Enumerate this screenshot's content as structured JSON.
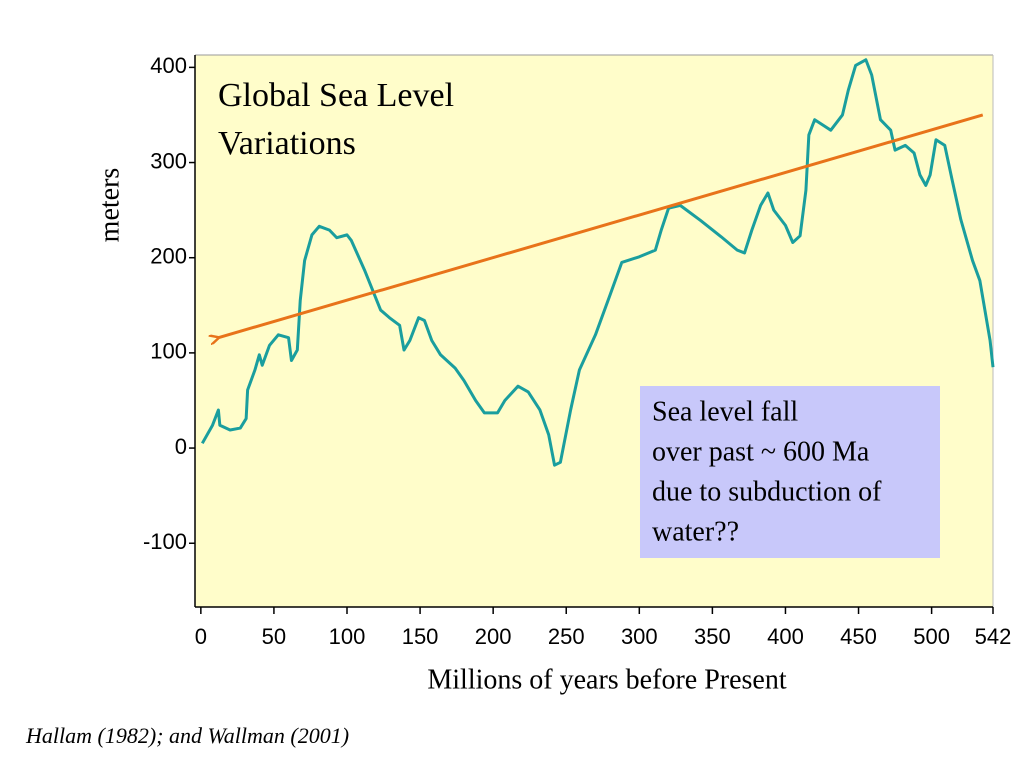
{
  "chart_data": {
    "type": "line",
    "title": [
      "Global Sea Level",
      "Variations"
    ],
    "ylabel": "meters",
    "xlabel": "Millions of years before Present",
    "source": "Hallam (1982); and Wallman (2001)",
    "annotation": {
      "lines": [
        "Sea level fall",
        "over past ~ 600 Ma",
        "due to subduction of",
        "water??"
      ],
      "color": "#c8c8fa"
    },
    "background": "#fffdca",
    "xlim": [
      -4,
      542
    ],
    "ylim": [
      -167,
      413
    ],
    "xticks": [
      0,
      50,
      100,
      150,
      200,
      250,
      300,
      350,
      400,
      450,
      500,
      542
    ],
    "yticks": [
      -100,
      0,
      100,
      200,
      300,
      400
    ],
    "series": [
      {
        "color": "#1a9e9e",
        "x": [
          1,
          8,
          12,
          13,
          20,
          27,
          31,
          32,
          37,
          40,
          42,
          47,
          53,
          60,
          62,
          66,
          68,
          71,
          76,
          81,
          88,
          93,
          100,
          103,
          112,
          123,
          129,
          136,
          139,
          143,
          149,
          153,
          158,
          164,
          174,
          180,
          188,
          194,
          203,
          208,
          217,
          224,
          232,
          238,
          242,
          246,
          253,
          259,
          270,
          280,
          288,
          300,
          311,
          315,
          320,
          328,
          342,
          356,
          367,
          372,
          377,
          383,
          388,
          392,
          400,
          405,
          410,
          414,
          416,
          420,
          431,
          439,
          443,
          448,
          455,
          459,
          465,
          472,
          475,
          482,
          488,
          492,
          496,
          499,
          503,
          509,
          514,
          520,
          528,
          533,
          540,
          542
        ],
        "values": [
          5,
          24,
          40,
          24,
          19,
          21,
          31,
          61,
          82,
          98,
          87,
          108,
          119,
          116,
          92,
          103,
          155,
          197,
          224,
          233,
          229,
          221,
          224,
          218,
          187,
          145,
          137,
          129,
          103,
          113,
          137,
          134,
          113,
          98,
          84,
          71,
          50,
          37,
          37,
          50,
          65,
          59,
          40,
          14,
          -18,
          -15,
          40,
          82,
          119,
          161,
          195,
          201,
          208,
          229,
          252,
          255,
          239,
          222,
          208,
          205,
          229,
          255,
          268,
          250,
          234,
          216,
          223,
          271,
          329,
          345,
          334,
          350,
          376,
          402,
          408,
          392,
          345,
          334,
          313,
          318,
          310,
          287,
          276,
          287,
          324,
          318,
          282,
          240,
          197,
          176,
          113,
          85
        ]
      }
    ],
    "trend_line": {
      "color": "#e8731a",
      "x": [
        535,
        12
      ],
      "values": [
        350,
        116
      ]
    }
  }
}
